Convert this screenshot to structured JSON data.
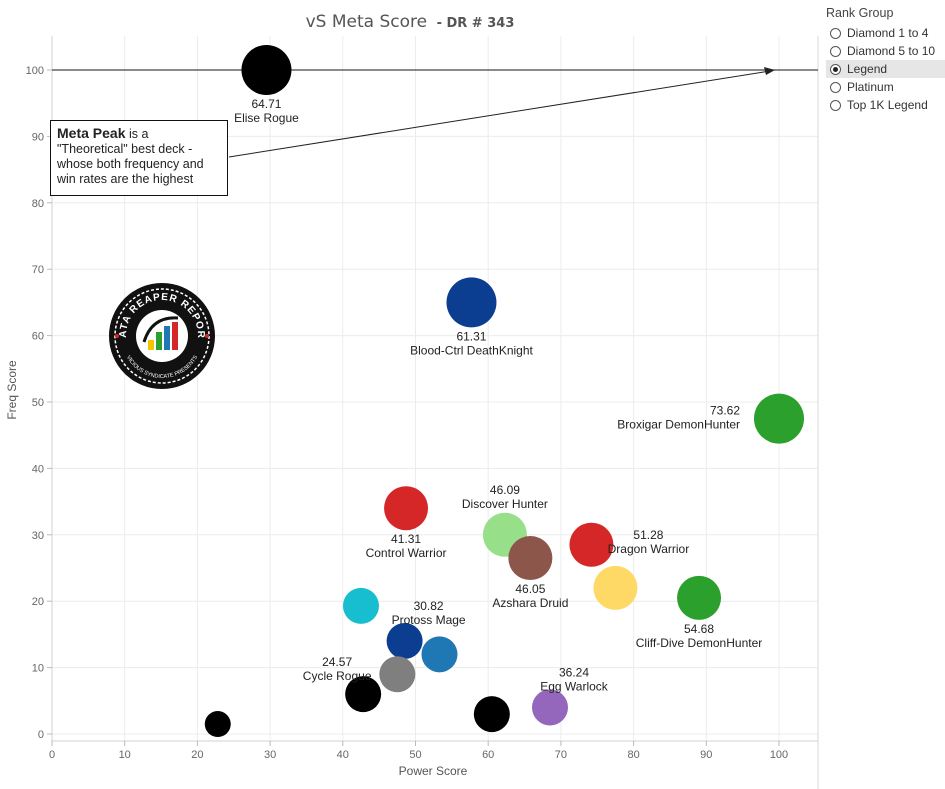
{
  "chart_data": {
    "type": "scatter",
    "title": "vS Meta Score",
    "subtitle": "- DR # 343",
    "xlabel": "Power Score",
    "ylabel": "Freq Score",
    "xlim": [
      0,
      105
    ],
    "ylim": [
      -1,
      105
    ],
    "xticks": [
      0,
      10,
      20,
      30,
      40,
      50,
      60,
      70,
      80,
      90,
      100
    ],
    "yticks": [
      0,
      10,
      20,
      30,
      40,
      50,
      60,
      70,
      80,
      90,
      100
    ],
    "reference_line_y": 100,
    "points": [
      {
        "name": "Elise Rogue",
        "score": "64.71",
        "x": 29.5,
        "y": 100,
        "color": "#000000",
        "size": "large",
        "label_pos": "below"
      },
      {
        "name": "Blood-Ctrl DeathKnight",
        "score": "61.31",
        "x": 57.7,
        "y": 65,
        "color": "#0b3d91",
        "size": "large",
        "label_pos": "below"
      },
      {
        "name": "Broxigar DemonHunter",
        "score": "73.62",
        "x": 100,
        "y": 47.5,
        "color": "#2ca02c",
        "size": "large",
        "label_pos": "left"
      },
      {
        "name": "Control Warrior",
        "score": "41.31",
        "x": 48.7,
        "y": 34,
        "color": "#d62728",
        "size": "medium",
        "label_pos": "below"
      },
      {
        "name": "Discover Hunter",
        "score": "46.09",
        "x": 62.3,
        "y": 30,
        "color": "#98df8a",
        "size": "medium",
        "label_pos": "above"
      },
      {
        "name": "Azshara Druid",
        "score": "46.05",
        "x": 65.8,
        "y": 26.5,
        "color": "#8c564b",
        "size": "medium",
        "label_pos": "below"
      },
      {
        "name": "Dragon Warrior",
        "score": "51.28",
        "x": 74.2,
        "y": 28.5,
        "color": "#d62728",
        "size": "medium",
        "label_pos": "right"
      },
      {
        "name": "",
        "score": "",
        "x": 77.5,
        "y": 22,
        "color": "#ffd966",
        "size": "medium",
        "label_pos": "none"
      },
      {
        "name": "Cliff-Dive DemonHunter",
        "score": "54.68",
        "x": 89,
        "y": 20.5,
        "color": "#2ca02c",
        "size": "medium",
        "label_pos": "below"
      },
      {
        "name": "",
        "score": "",
        "x": 42.5,
        "y": 19.3,
        "color": "#17becf",
        "size": "small",
        "label_pos": "none"
      },
      {
        "name": "Protoss Mage",
        "score": "30.82",
        "x": 48.5,
        "y": 14,
        "color": "#0b3d91",
        "size": "small",
        "label_pos": "above-right"
      },
      {
        "name": "",
        "score": "",
        "x": 53.3,
        "y": 12,
        "color": "#1f77b4",
        "size": "small",
        "label_pos": "none"
      },
      {
        "name": "",
        "score": "",
        "x": 47.5,
        "y": 9,
        "color": "#7f7f7f",
        "size": "small",
        "label_pos": "none"
      },
      {
        "name": "Cycle Rogue",
        "score": "24.57",
        "x": 42.8,
        "y": 6,
        "color": "#000000",
        "size": "small",
        "label_pos": "above-left"
      },
      {
        "name": "",
        "score": "",
        "x": 60.5,
        "y": 3,
        "color": "#000000",
        "size": "small",
        "label_pos": "none"
      },
      {
        "name": "Egg Warlock",
        "score": "36.24",
        "x": 68.5,
        "y": 4,
        "color": "#9467bd",
        "size": "small",
        "label_pos": "above-right"
      },
      {
        "name": "",
        "score": "",
        "x": 22.8,
        "y": 1.5,
        "color": "#000000",
        "size": "tiny",
        "label_pos": "none"
      }
    ]
  },
  "annotation": {
    "bold": "Meta Peak",
    "text": " is a \"Theoretical\" best deck - whose both frequency and win rates are the highest"
  },
  "logo": {
    "top_text": "DATA REAPER REPORT",
    "bottom_text": "VICIOUS SYNDICATE PRESENTS"
  },
  "legend": {
    "title": "Rank Group",
    "items": [
      {
        "label": "Diamond 1 to 4",
        "selected": false
      },
      {
        "label": "Diamond 5 to 10",
        "selected": false
      },
      {
        "label": "Legend",
        "selected": true
      },
      {
        "label": "Platinum",
        "selected": false
      },
      {
        "label": "Top 1K Legend",
        "selected": false
      }
    ]
  }
}
